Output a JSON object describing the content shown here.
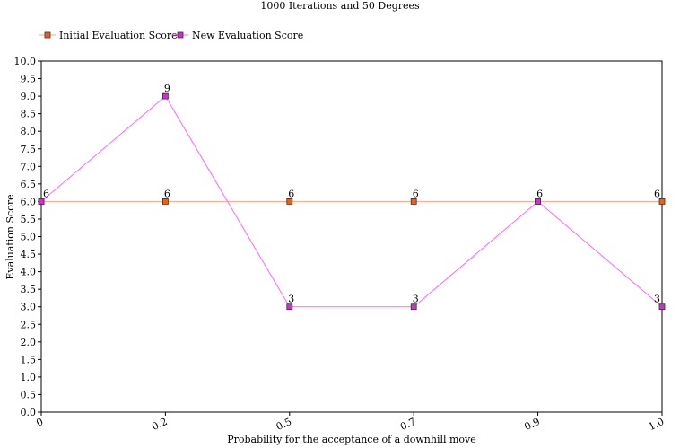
{
  "chart_data": {
    "type": "line",
    "title": "1000 Iterations and 50 Degrees",
    "xlabel": "Probability for the acceptance of a downhill move",
    "ylabel": "Evaluation Score",
    "categories": [
      "0",
      "0.2",
      "0.5",
      "0.7",
      "0.9",
      "1.0"
    ],
    "ylim": [
      0,
      10
    ],
    "ytick_step": 0.5,
    "y_ticks": [
      "0.0",
      "0.5",
      "1.0",
      "1.5",
      "2.0",
      "2.5",
      "3.0",
      "3.5",
      "4.0",
      "4.5",
      "5.0",
      "5.5",
      "6.0",
      "6.5",
      "7.0",
      "7.5",
      "8.0",
      "8.5",
      "9.0",
      "9.5",
      "10.0"
    ],
    "grid": false,
    "legend_position": "top-left",
    "series": [
      {
        "name": "Initial Evaluation Score",
        "values": [
          6,
          6,
          6,
          6,
          6,
          6
        ],
        "labels": [
          "6",
          "6",
          "6",
          "6",
          "6",
          "6"
        ],
        "line_color": "#f4a58a",
        "marker_color": "#e8601c"
      },
      {
        "name": "New Evaluation Score",
        "values": [
          6,
          9,
          3,
          3,
          6,
          3
        ],
        "labels": [
          "",
          "9",
          "3",
          "3",
          "",
          "3"
        ],
        "line_color": "#ff66ff",
        "marker_color": "#cc33cc"
      }
    ]
  }
}
